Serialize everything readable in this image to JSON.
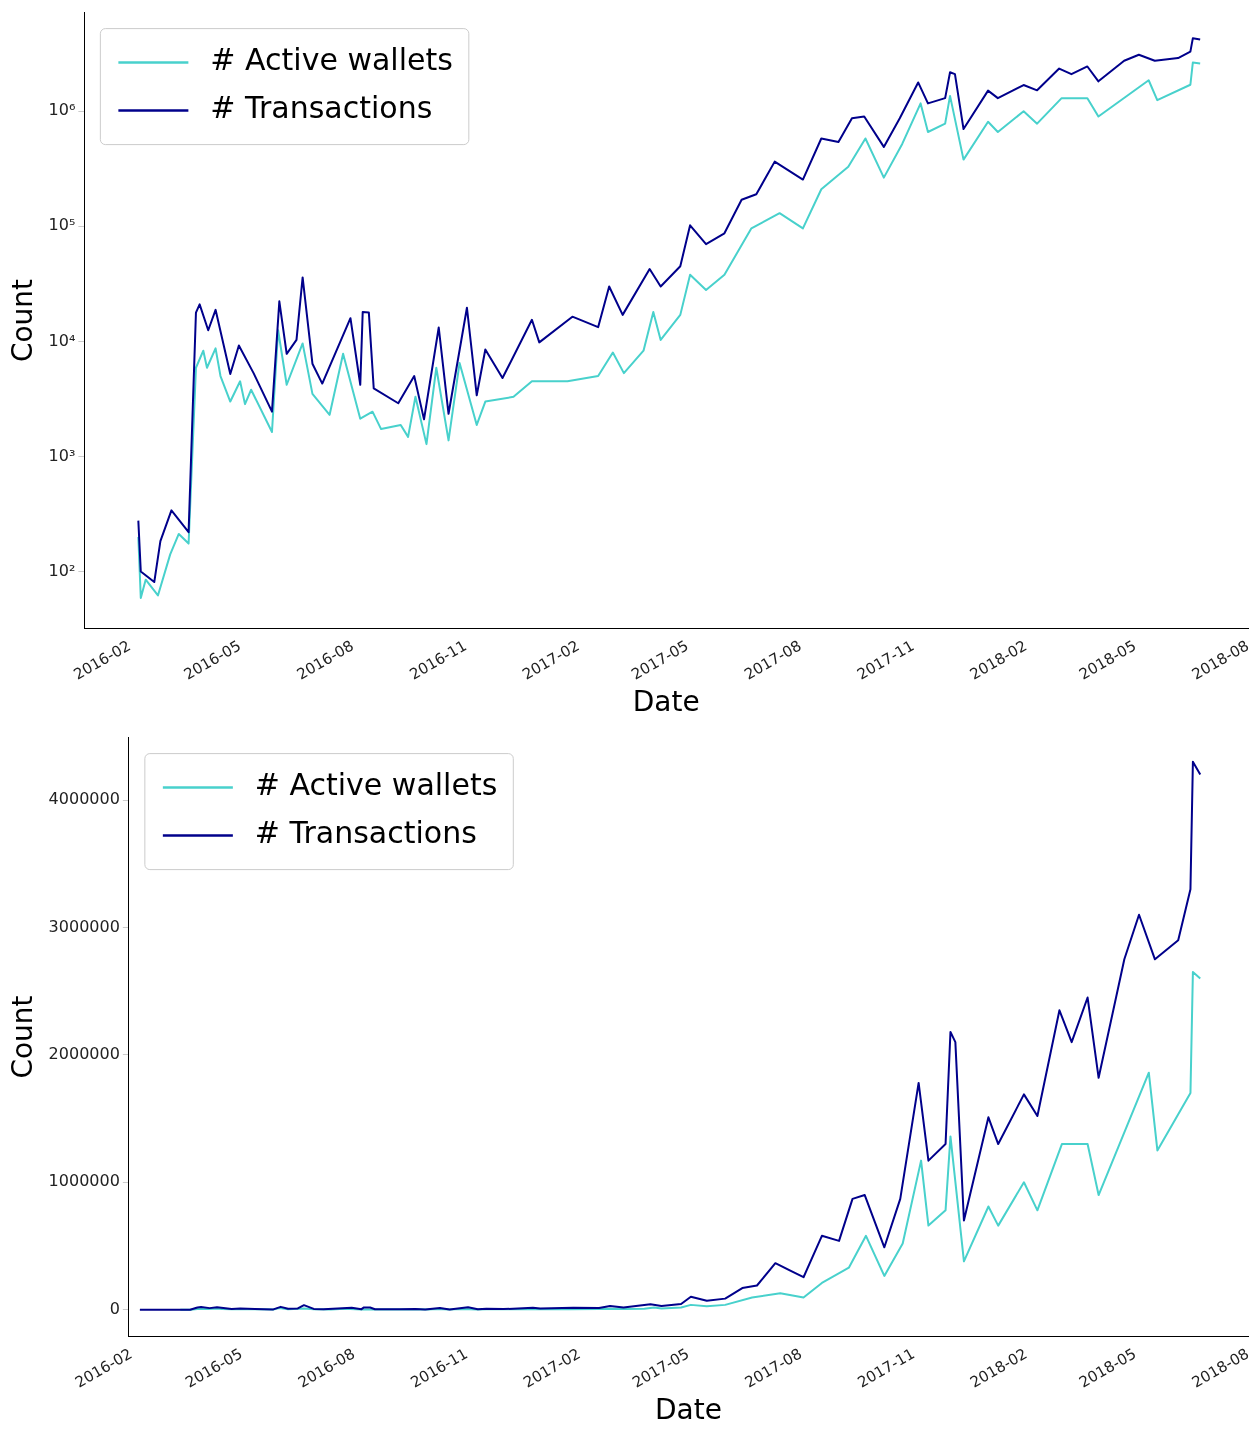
{
  "chart_data": [
    {
      "type": "line",
      "xlabel": "Date",
      "ylabel": "Count",
      "log": true,
      "grid": false,
      "legend": "top left",
      "marker": "none",
      "xlim": [
        "2015-12-26",
        "2018-08-01"
      ],
      "xticks": [
        "2016-02",
        "2016-05",
        "2016-08",
        "2016-11",
        "2017-02",
        "2017-05",
        "2017-08",
        "2017-11",
        "2018-02",
        "2018-05",
        "2018-08"
      ],
      "ylim": [
        32,
        7200000
      ],
      "yticks": [
        {
          "value": 100,
          "label": "10²"
        },
        {
          "value": 1000,
          "label": "10³"
        },
        {
          "value": 10000,
          "label": "10⁴"
        },
        {
          "value": 100000,
          "label": "10⁵"
        },
        {
          "value": 1000000,
          "label": "10⁶"
        }
      ],
      "series": [
        {
          "name": "# Active wallets",
          "color": "#48d1cc",
          "x": [
            "2016-02-08",
            "2016-02-10",
            "2016-02-14",
            "2016-02-24",
            "2016-03-05",
            "2016-03-12",
            "2016-03-20",
            "2016-03-26",
            "2016-04-01",
            "2016-04-04",
            "2016-04-11",
            "2016-04-15",
            "2016-04-23",
            "2016-05-01",
            "2016-05-05",
            "2016-05-10",
            "2016-05-27",
            "2016-06-01",
            "2016-06-08",
            "2016-06-21",
            "2016-06-29",
            "2016-07-13",
            "2016-07-24",
            "2016-08-07",
            "2016-08-17",
            "2016-08-24",
            "2016-09-09",
            "2016-09-15",
            "2016-09-21",
            "2016-09-30",
            "2016-10-08",
            "2016-10-18",
            "2016-10-27",
            "2016-11-10",
            "2016-11-17",
            "2016-12-10",
            "2016-12-25",
            "2017-01-23",
            "2017-02-17",
            "2017-03-01",
            "2017-03-10",
            "2017-03-26",
            "2017-04-03",
            "2017-04-09",
            "2017-04-25",
            "2017-05-03",
            "2017-05-16",
            "2017-05-31",
            "2017-06-22",
            "2017-07-15",
            "2017-08-03",
            "2017-08-18",
            "2017-09-09",
            "2017-09-23",
            "2017-10-08",
            "2017-10-23",
            "2017-11-07",
            "2017-11-13",
            "2017-11-27",
            "2017-12-01",
            "2017-12-12",
            "2018-01-01",
            "2018-01-09",
            "2018-01-30",
            "2018-02-10",
            "2018-03-02",
            "2018-03-23",
            "2018-04-01",
            "2018-05-12",
            "2018-05-19",
            "2018-06-15",
            "2018-06-17",
            "2018-06-23"
          ],
          "values": [
            200,
            59,
            85,
            62,
            141,
            212,
            175,
            5900,
            8300,
            5900,
            8700,
            5000,
            3000,
            4500,
            2850,
            3800,
            1630,
            12500,
            4200,
            9600,
            3500,
            2300,
            7800,
            2130,
            2450,
            1730,
            1880,
            1480,
            3300,
            1280,
            5900,
            1380,
            6500,
            1880,
            3000,
            3300,
            4500,
            4500,
            5000,
            8000,
            5300,
            8300,
            18000,
            10300,
            17000,
            38000,
            28000,
            38000,
            96000,
            130000,
            96000,
            210000,
            330000,
            580000,
            265000,
            520000,
            1170000,
            660000,
            780000,
            1360000,
            380000,
            810000,
            660000,
            1000000,
            780000,
            1300000,
            1300000,
            900000,
            1860000,
            1250000,
            1700000,
            2650000,
            2600000
          ]
        },
        {
          "name": "# Transactions",
          "color": "#00008b",
          "x": [
            "2016-02-08",
            "2016-02-10",
            "2016-02-21",
            "2016-02-26",
            "2016-03-06",
            "2016-03-20",
            "2016-03-26",
            "2016-03-29",
            "2016-04-05",
            "2016-04-11",
            "2016-04-23",
            "2016-04-30",
            "2016-05-12",
            "2016-05-27",
            "2016-06-02",
            "2016-06-08",
            "2016-06-16",
            "2016-06-21",
            "2016-06-29",
            "2016-07-07",
            "2016-07-30",
            "2016-08-07",
            "2016-08-09",
            "2016-08-14",
            "2016-08-18",
            "2016-09-07",
            "2016-09-20",
            "2016-09-28",
            "2016-10-10",
            "2016-10-18",
            "2016-11-02",
            "2016-11-10",
            "2016-11-17",
            "2016-12-01",
            "2016-12-25",
            "2016-12-31",
            "2017-01-27",
            "2017-02-17",
            "2017-02-26",
            "2017-03-09",
            "2017-03-31",
            "2017-04-09",
            "2017-04-25",
            "2017-05-03",
            "2017-05-16",
            "2017-05-31",
            "2017-06-14",
            "2017-06-26",
            "2017-07-11",
            "2017-08-03",
            "2017-08-18",
            "2017-09-01",
            "2017-09-12",
            "2017-09-22",
            "2017-10-08",
            "2017-10-21",
            "2017-11-05",
            "2017-11-13",
            "2017-11-27",
            "2017-12-01",
            "2017-12-05",
            "2017-12-12",
            "2018-01-01",
            "2018-01-09",
            "2018-01-30",
            "2018-02-10",
            "2018-02-28",
            "2018-03-10",
            "2018-03-23",
            "2018-04-01",
            "2018-04-22",
            "2018-05-04",
            "2018-05-17",
            "2018-06-05",
            "2018-06-15",
            "2018-06-17",
            "2018-06-23"
          ],
          "values": [
            277,
            100,
            81,
            184,
            340,
            220,
            17800,
            21000,
            12500,
            18800,
            5200,
            9200,
            5300,
            2450,
            22300,
            7800,
            10300,
            36000,
            6400,
            4300,
            15900,
            4200,
            18000,
            17800,
            3900,
            2900,
            5000,
            2100,
            13200,
            2350,
            19600,
            3400,
            8500,
            4800,
            15400,
            9800,
            16400,
            13300,
            30000,
            17000,
            42500,
            30000,
            45000,
            102000,
            70000,
            87000,
            170000,
            190000,
            365000,
            255000,
            580000,
            540000,
            870000,
            900000,
            490000,
            870000,
            1780000,
            1170000,
            1300000,
            2180000,
            2100000,
            700000,
            1510000,
            1300000,
            1690000,
            1520000,
            2350000,
            2100000,
            2450000,
            1820000,
            2750000,
            3100000,
            2750000,
            2900000,
            3300000,
            4300000,
            4200000
          ]
        }
      ]
    },
    {
      "type": "line",
      "xlabel": "Date",
      "ylabel": "Count",
      "grid": false,
      "legend": "top left",
      "marker": "none",
      "xlim": [
        "2016-01-30",
        "2018-08-01"
      ],
      "xticks": [
        "2016-02",
        "2016-05",
        "2016-08",
        "2016-11",
        "2017-02",
        "2017-05",
        "2017-08",
        "2017-11",
        "2018-02",
        "2018-05",
        "2018-08"
      ],
      "ylim": [
        -210000,
        4490000
      ],
      "yticks": [
        0,
        1000000,
        2000000,
        3000000,
        4000000
      ],
      "series": [
        {
          "name": "# Active wallets",
          "color": "#48d1cc",
          "x": [
            "2016-03-12",
            "2016-03-20",
            "2016-03-26",
            "2016-04-01",
            "2016-04-04",
            "2016-04-11",
            "2016-04-15",
            "2016-04-23",
            "2016-05-01",
            "2016-05-05",
            "2016-05-10",
            "2016-05-27",
            "2016-06-01",
            "2016-06-08",
            "2016-06-21",
            "2016-06-29",
            "2016-07-13",
            "2016-07-24",
            "2016-08-07",
            "2016-08-17",
            "2016-08-24",
            "2016-09-09",
            "2016-09-15",
            "2016-09-21",
            "2016-09-30",
            "2016-10-08",
            "2016-10-18",
            "2016-10-27",
            "2016-11-10",
            "2016-11-17",
            "2016-12-10",
            "2016-12-25",
            "2017-01-23",
            "2017-02-17",
            "2017-03-01",
            "2017-03-10",
            "2017-03-26",
            "2017-04-03",
            "2017-04-09",
            "2017-04-25",
            "2017-05-03",
            "2017-05-16",
            "2017-05-31",
            "2017-06-22",
            "2017-07-15",
            "2017-08-03",
            "2017-08-18",
            "2017-09-09",
            "2017-09-23",
            "2017-10-08",
            "2017-10-23",
            "2017-11-07",
            "2017-11-13",
            "2017-11-27",
            "2017-12-01",
            "2017-12-12",
            "2018-01-01",
            "2018-01-09",
            "2018-01-30",
            "2018-02-10",
            "2018-03-02",
            "2018-03-23",
            "2018-04-01",
            "2018-05-12",
            "2018-05-19",
            "2018-06-15",
            "2018-06-17",
            "2018-06-23"
          ],
          "values": [
            212,
            175,
            5900,
            8300,
            5900,
            8700,
            5000,
            3000,
            4500,
            2850,
            3800,
            1630,
            12500,
            4200,
            9600,
            3500,
            2300,
            7800,
            2130,
            2450,
            1730,
            1880,
            1480,
            3300,
            1280,
            5900,
            1380,
            6500,
            1880,
            3000,
            3300,
            4500,
            4500,
            5000,
            8000,
            5300,
            8300,
            18000,
            10300,
            17000,
            38000,
            28000,
            38000,
            96000,
            130000,
            96000,
            210000,
            330000,
            580000,
            265000,
            520000,
            1170000,
            660000,
            780000,
            1360000,
            380000,
            810000,
            660000,
            1000000,
            780000,
            1300000,
            1300000,
            900000,
            1860000,
            1250000,
            1700000,
            2650000,
            2600000
          ]
        },
        {
          "name": "# Transactions",
          "color": "#00008b",
          "x": [
            "2016-02-08",
            "2016-02-10",
            "2016-02-21",
            "2016-02-26",
            "2016-03-06",
            "2016-03-20",
            "2016-03-26",
            "2016-03-29",
            "2016-04-05",
            "2016-04-11",
            "2016-04-23",
            "2016-04-30",
            "2016-05-12",
            "2016-05-27",
            "2016-06-02",
            "2016-06-08",
            "2016-06-16",
            "2016-06-21",
            "2016-06-29",
            "2016-07-07",
            "2016-07-30",
            "2016-08-07",
            "2016-08-09",
            "2016-08-14",
            "2016-08-18",
            "2016-09-07",
            "2016-09-20",
            "2016-09-28",
            "2016-10-10",
            "2016-10-18",
            "2016-11-02",
            "2016-11-10",
            "2016-11-17",
            "2016-12-01",
            "2016-12-25",
            "2016-12-31",
            "2017-01-27",
            "2017-02-17",
            "2017-02-26",
            "2017-03-09",
            "2017-03-31",
            "2017-04-09",
            "2017-04-25",
            "2017-05-03",
            "2017-05-16",
            "2017-05-31",
            "2017-06-14",
            "2017-06-26",
            "2017-07-11",
            "2017-08-03",
            "2017-08-18",
            "2017-09-01",
            "2017-09-12",
            "2017-09-22",
            "2017-10-08",
            "2017-10-21",
            "2017-11-05",
            "2017-11-13",
            "2017-11-27",
            "2017-12-01",
            "2017-12-05",
            "2017-12-12",
            "2018-01-01",
            "2018-01-09",
            "2018-01-30",
            "2018-02-10",
            "2018-02-28",
            "2018-03-10",
            "2018-03-23",
            "2018-04-01",
            "2018-04-22",
            "2018-05-04",
            "2018-05-17",
            "2018-06-05",
            "2018-06-15",
            "2018-06-17",
            "2018-06-23"
          ],
          "values": [
            277,
            100,
            81,
            184,
            340,
            220,
            17800,
            21000,
            12500,
            18800,
            5200,
            9200,
            5300,
            2450,
            22300,
            7800,
            10300,
            36000,
            6400,
            4300,
            15900,
            4200,
            18000,
            17800,
            3900,
            2900,
            5000,
            2100,
            13200,
            2350,
            19600,
            3400,
            8500,
            4800,
            15400,
            9800,
            16400,
            13300,
            30000,
            17000,
            42500,
            30000,
            45000,
            102000,
            70000,
            87000,
            170000,
            190000,
            365000,
            255000,
            580000,
            540000,
            870000,
            900000,
            490000,
            870000,
            1780000,
            1170000,
            1300000,
            2180000,
            2100000,
            700000,
            1510000,
            1300000,
            1690000,
            1520000,
            2350000,
            2100000,
            2450000,
            1820000,
            2750000,
            3100000,
            2750000,
            2900000,
            3300000,
            4300000,
            4200000
          ]
        }
      ]
    }
  ]
}
